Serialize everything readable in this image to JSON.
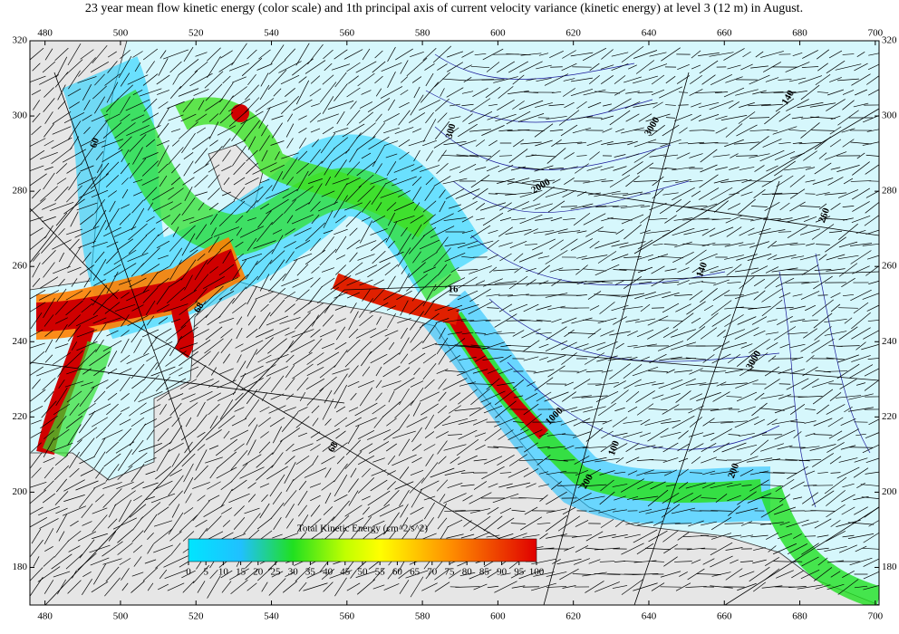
{
  "title": "23 year mean flow kinetic energy (color scale) and 1th principal axis of current velocity variance (kinetic energy) at level 3 (12 m) in August.",
  "map": {
    "xlim": [
      476,
      701
    ],
    "ylim": [
      170,
      320
    ],
    "xticks": [
      480,
      500,
      520,
      540,
      560,
      580,
      600,
      620,
      640,
      660,
      680,
      700
    ],
    "yticks": [
      180,
      200,
      220,
      240,
      260,
      280,
      300,
      320
    ],
    "contour_labels": [
      "60",
      "68",
      "68",
      "300",
      "2000",
      "3000",
      "1000",
      "100",
      "200",
      "200",
      "3000",
      "140",
      "140",
      "260",
      "16"
    ]
  },
  "colorbar": {
    "label": "Total Kinetic Energy (cm^2/s^2)",
    "lim": [
      0,
      100
    ],
    "ticks": [
      0,
      5,
      10,
      15,
      20,
      25,
      30,
      35,
      40,
      45,
      50,
      55,
      60,
      65,
      70,
      75,
      80,
      85,
      90,
      95,
      100
    ]
  }
}
